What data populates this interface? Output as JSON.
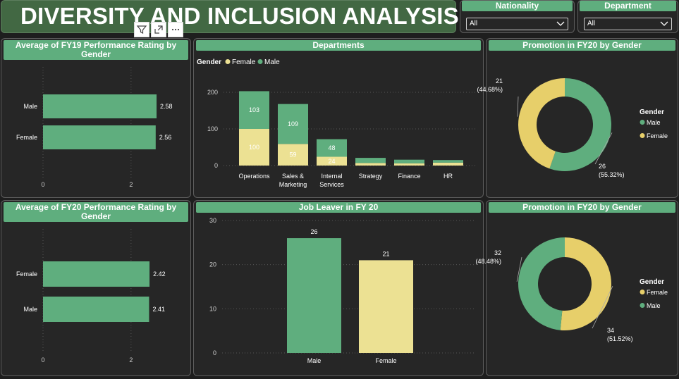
{
  "title": "DIVERSITY AND INCLUSION ANALYSIS",
  "slicers": {
    "nationality": {
      "label": "Nationality",
      "value": "All"
    },
    "department": {
      "label": "Department",
      "value": "All"
    }
  },
  "colors": {
    "male": "#5fae7e",
    "female": "#ece193",
    "female_donut": "#e7cf6a",
    "header": "#5fae7e",
    "title_bg": "#426843"
  },
  "chart_data": [
    {
      "id": "fy19",
      "type": "bar",
      "orientation": "horizontal",
      "title": "Average of FY19 Performance Rating by Gender",
      "categories": [
        "Male",
        "Female"
      ],
      "values": [
        2.58,
        2.56
      ],
      "value_labels": [
        "2.58",
        "2.56"
      ],
      "xlim": [
        0,
        3.3
      ],
      "xticks": [
        "0",
        "2"
      ],
      "xtick_values": [
        0,
        2
      ]
    },
    {
      "id": "departments",
      "type": "bar",
      "stacked": true,
      "title": "Departments",
      "legend_title": "Gender",
      "categories": [
        "Operations",
        "Sales & Marketing",
        "Internal Services",
        "Strategy",
        "Finance",
        "HR"
      ],
      "category_lines": [
        [
          "Operations"
        ],
        [
          "Sales &",
          "Marketing"
        ],
        [
          "Internal",
          "Services"
        ],
        [
          "Strategy"
        ],
        [
          "Finance"
        ],
        [
          "HR"
        ]
      ],
      "series": [
        {
          "name": "Female",
          "values": [
            100,
            59,
            24,
            7,
            6,
            8
          ],
          "labels": [
            "100",
            "59",
            "24",
            "",
            "",
            ""
          ]
        },
        {
          "name": "Male",
          "values": [
            103,
            109,
            48,
            14,
            10,
            7
          ],
          "labels": [
            "103",
            "109",
            "48",
            "",
            "",
            ""
          ]
        }
      ],
      "ylim": [
        0,
        220
      ],
      "yticks": [
        "0",
        "100",
        "200"
      ],
      "ytick_values": [
        0,
        100,
        200
      ]
    },
    {
      "id": "promo1",
      "type": "pie",
      "donut": true,
      "title": "Promotion in FY20 by Gender",
      "legend_title": "Gender",
      "legend": [
        "Male",
        "Female"
      ],
      "slices": [
        {
          "name": "Male",
          "value": 26,
          "label": "26",
          "pct": "(55.32%)"
        },
        {
          "name": "Female",
          "value": 21,
          "label": "21",
          "pct": "(44.68%)"
        }
      ]
    },
    {
      "id": "fy20",
      "type": "bar",
      "orientation": "horizontal",
      "title": "Average of FY20 Performance Rating by Gender",
      "categories": [
        "Female",
        "Male"
      ],
      "values": [
        2.42,
        2.41
      ],
      "value_labels": [
        "2.42",
        "2.41"
      ],
      "xlim": [
        0,
        3.3
      ],
      "xticks": [
        "0",
        "2"
      ],
      "xtick_values": [
        0,
        2
      ]
    },
    {
      "id": "leaver",
      "type": "bar",
      "title": "Job Leaver in FY 20",
      "categories": [
        "Male",
        "Female"
      ],
      "values": [
        26,
        21
      ],
      "value_labels": [
        "26",
        "21"
      ],
      "ylim": [
        0,
        30
      ],
      "yticks": [
        "0",
        "10",
        "20",
        "30"
      ],
      "ytick_values": [
        0,
        10,
        20,
        30
      ]
    },
    {
      "id": "promo2",
      "type": "pie",
      "donut": true,
      "title": "Promotion in FY20 by Gender",
      "legend_title": "Gender",
      "legend": [
        "Female",
        "Male"
      ],
      "slices": [
        {
          "name": "Female",
          "value": 34,
          "label": "34",
          "pct": "(51.52%)"
        },
        {
          "name": "Male",
          "value": 32,
          "label": "32",
          "pct": "(48.48%)"
        }
      ]
    }
  ]
}
